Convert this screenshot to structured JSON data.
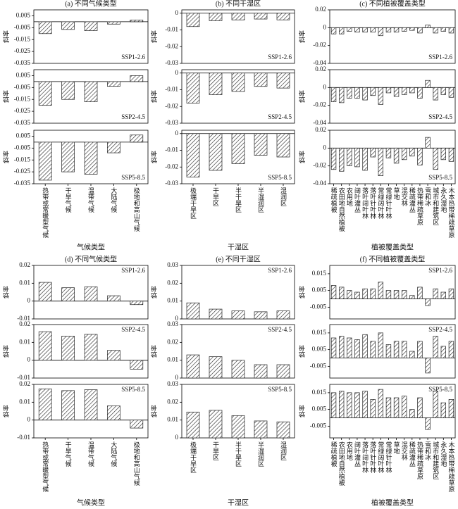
{
  "chart_data": [
    {
      "type": "bar",
      "title": "(a) 不同气候类型",
      "xlabel": "气候类型",
      "ylabel": "斜率",
      "color": "#222222",
      "annotation_corner": "lower right",
      "categories": [
        "热带或常暖型气候",
        "干旱气候",
        "温带气候",
        "大陆气候",
        "极地和高山气候"
      ],
      "ylim": [
        -0.035,
        0.01
      ],
      "yticks": [
        0.005,
        -0.005,
        -0.015,
        -0.025,
        -0.035
      ],
      "subplots": [
        {
          "annotation": "SSP1-2.6",
          "values": [
            -0.01,
            -0.0065,
            -0.0075,
            -0.002,
            0.0015
          ]
        },
        {
          "annotation": "SSP2-4.5",
          "values": [
            -0.02,
            -0.015,
            -0.017,
            -0.004,
            0.005
          ]
        },
        {
          "annotation": "SSP5-8.5",
          "values": [
            -0.032,
            -0.025,
            -0.027,
            -0.009,
            0.006
          ]
        }
      ]
    },
    {
      "type": "bar",
      "title": "(b) 不同干湿区",
      "xlabel": "干湿区",
      "ylabel": "斜率",
      "color": "#222222",
      "annotation_corner": "lower right",
      "categories": [
        "极端干旱区",
        "干旱区",
        "半干旱区",
        "半湿润区",
        "湿润区"
      ],
      "ylim": [
        -0.03,
        0.002
      ],
      "yticks": [
        0,
        -0.01,
        -0.02,
        -0.03
      ],
      "subplots": [
        {
          "annotation": "SSP1-2.6",
          "values": [
            -0.008,
            -0.0045,
            -0.004,
            -0.0035,
            -0.004
          ]
        },
        {
          "annotation": "SSP2-4.5",
          "values": [
            -0.018,
            -0.013,
            -0.011,
            -0.008,
            -0.009
          ]
        },
        {
          "annotation": "SSP5-8.5",
          "values": [
            -0.026,
            -0.022,
            -0.018,
            -0.013,
            -0.014
          ]
        }
      ]
    },
    {
      "type": "bar",
      "title": "(c) 不同植被覆盖类型",
      "xlabel": "植被覆盖类型",
      "ylabel": "斜率",
      "color": "#222222",
      "annotation_corner": "lower right",
      "categories": [
        "稀疏植被",
        "农田地自然植被",
        "农用地",
        "阔叶灌丛",
        "落叶阔叶林",
        "落叶针叶林",
        "常绿阔叶林",
        "常绿针叶林",
        "草地",
        "混交林",
        "稀疏灌丛",
        "热带稀疏草原",
        "雪和冰",
        "城市和建筑区",
        "永久湿地",
        "木本热带稀疏草原"
      ],
      "ylim": [
        -0.04,
        0.02
      ],
      "yticks": [
        0.02,
        0,
        -0.02,
        -0.04
      ],
      "subplots": [
        {
          "annotation": "SSP1-2.6",
          "values": [
            -0.007,
            -0.007,
            -0.004,
            -0.005,
            -0.005,
            -0.005,
            -0.009,
            -0.005,
            -0.005,
            -0.004,
            -0.003,
            -0.006,
            0.003,
            -0.006,
            -0.004,
            -0.006
          ]
        },
        {
          "annotation": "SSP2-4.5",
          "values": [
            -0.016,
            -0.017,
            -0.012,
            -0.012,
            -0.014,
            -0.009,
            -0.019,
            -0.006,
            -0.01,
            -0.008,
            -0.006,
            -0.012,
            0.008,
            -0.014,
            -0.008,
            -0.011
          ]
        },
        {
          "annotation": "SSP5-8.5",
          "values": [
            -0.024,
            -0.026,
            -0.02,
            -0.021,
            -0.025,
            -0.01,
            -0.031,
            -0.011,
            -0.017,
            -0.013,
            -0.009,
            -0.019,
            0.012,
            -0.024,
            -0.013,
            -0.015
          ]
        }
      ]
    },
    {
      "type": "bar",
      "title": "(d) 不同气候类型",
      "xlabel": "气候类型",
      "ylabel": "斜率",
      "color": "#222222",
      "annotation_corner": "upper right",
      "categories": [
        "热带或常暖型气候",
        "干旱气候",
        "温带气候",
        "大陆气候",
        "极地和高山气候"
      ],
      "ylim": [
        -0.01,
        0.02
      ],
      "yticks": [
        0.02,
        0.01,
        0,
        -0.01
      ],
      "subplots": [
        {
          "annotation": "SSP1-2.6",
          "values": [
            0.0105,
            0.0075,
            0.008,
            0.003,
            -0.002
          ]
        },
        {
          "annotation": "SSP2-4.5",
          "values": [
            0.016,
            0.0135,
            0.0145,
            0.0055,
            -0.005
          ]
        },
        {
          "annotation": "SSP5-8.5",
          "values": [
            0.0175,
            0.0165,
            0.017,
            0.008,
            -0.0045
          ]
        }
      ]
    },
    {
      "type": "bar",
      "title": "(e) 不同干湿区",
      "xlabel": "干湿区",
      "ylabel": "斜率",
      "color": "#222222",
      "annotation_corner": "upper right",
      "categories": [
        "极端干旱区",
        "干旱区",
        "半干旱区",
        "半湿润区",
        "湿润区"
      ],
      "ylim": [
        0,
        0.03
      ],
      "yticks": [
        0.03,
        0.02,
        0.01,
        0
      ],
      "subplots": [
        {
          "annotation": "SSP1-2.6",
          "values": [
            0.009,
            0.0055,
            0.0045,
            0.004,
            0.0045
          ]
        },
        {
          "annotation": "SSP2-4.5",
          "values": [
            0.013,
            0.012,
            0.01,
            0.0075,
            0.0075
          ]
        },
        {
          "annotation": "SSP5-8.5",
          "values": [
            0.0145,
            0.0155,
            0.0125,
            0.0095,
            0.009
          ]
        }
      ]
    },
    {
      "type": "bar",
      "title": "(f) 不同植被覆盖类型",
      "xlabel": "植被覆盖类型",
      "ylabel": "斜率",
      "color": "#222222",
      "annotation_corner": "upper right",
      "categories": [
        "稀疏植被",
        "农田地自然植被",
        "农用地",
        "阔叶灌丛",
        "落叶阔叶林",
        "落叶针叶林",
        "常绿阔叶林",
        "常绿针叶林",
        "草地",
        "混交林",
        "稀疏灌丛",
        "热带稀疏草原",
        "雪和冰",
        "城市和建筑区",
        "永久湿地",
        "木本热带稀疏草原"
      ],
      "ylim": [
        -0.012,
        0.02
      ],
      "yticks": [
        0.015,
        0.005,
        -0.005
      ],
      "subplots": [
        {
          "annotation": "SSP1-2.6",
          "values": [
            0.008,
            0.007,
            0.005,
            0.004,
            0.006,
            0.006,
            0.01,
            0.005,
            0.005,
            0.005,
            0.002,
            0.007,
            -0.004,
            0.006,
            0.004,
            0.006
          ]
        },
        {
          "annotation": "SSP2-4.5",
          "values": [
            0.012,
            0.013,
            0.012,
            0.011,
            0.014,
            0.01,
            0.015,
            0.008,
            0.01,
            0.01,
            0.004,
            0.01,
            -0.009,
            0.013,
            0.007,
            0.01
          ]
        },
        {
          "annotation": "SSP5-8.5",
          "values": [
            0.015,
            0.016,
            0.015,
            0.015,
            0.016,
            0.011,
            0.017,
            0.012,
            0.012,
            0.013,
            0.005,
            0.012,
            -0.007,
            0.016,
            0.009,
            0.011
          ]
        }
      ]
    }
  ]
}
